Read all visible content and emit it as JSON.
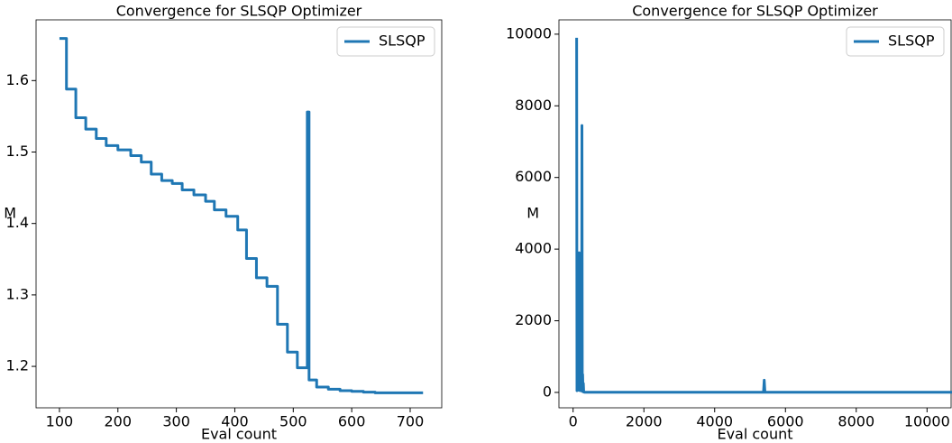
{
  "chart_data": [
    {
      "type": "line",
      "title": "Convergence for SLSQP Optimizer",
      "x_label": "Eval count",
      "y_label": "M",
      "legend": "upper right",
      "xlim": [
        60,
        754
      ],
      "ylim": [
        1.142,
        1.685
      ],
      "xticks": [
        100,
        200,
        300,
        400,
        500,
        600,
        700
      ],
      "yticks": [
        1.2,
        1.3,
        1.4,
        1.5,
        1.6
      ],
      "series": [
        {
          "name": "SLSQP",
          "color": "#1f77b4",
          "x": [
            100,
            112,
            112,
            128,
            128,
            145,
            145,
            163,
            163,
            180,
            180,
            200,
            200,
            222,
            222,
            240,
            240,
            257,
            257,
            275,
            275,
            293,
            293,
            310,
            310,
            330,
            330,
            350,
            350,
            365,
            365,
            385,
            385,
            405,
            405,
            420,
            420,
            437,
            437,
            455,
            455,
            473,
            473,
            490,
            490,
            507,
            507,
            524,
            524,
            527,
            527,
            540,
            540,
            560,
            560,
            580,
            580,
            600,
            600,
            620,
            620,
            640,
            640,
            722
          ],
          "values": [
            1.659,
            1.659,
            1.588,
            1.588,
            1.548,
            1.548,
            1.532,
            1.532,
            1.519,
            1.519,
            1.509,
            1.509,
            1.503,
            1.503,
            1.495,
            1.495,
            1.486,
            1.486,
            1.469,
            1.469,
            1.46,
            1.46,
            1.456,
            1.456,
            1.447,
            1.447,
            1.44,
            1.44,
            1.431,
            1.431,
            1.419,
            1.419,
            1.41,
            1.41,
            1.391,
            1.391,
            1.351,
            1.351,
            1.324,
            1.324,
            1.312,
            1.312,
            1.259,
            1.259,
            1.22,
            1.22,
            1.198,
            1.198,
            1.556,
            1.556,
            1.181,
            1.181,
            1.171,
            1.171,
            1.168,
            1.168,
            1.166,
            1.166,
            1.165,
            1.165,
            1.164,
            1.164,
            1.163,
            1.163
          ]
        }
      ]
    },
    {
      "type": "line",
      "title": "Convergence for SLSQP Optimizer",
      "x_label": "Eval count",
      "y_label": "M",
      "legend": "upper right",
      "xlim": [
        -400,
        10680
      ],
      "ylim": [
        -430,
        10400
      ],
      "xticks": [
        0,
        2000,
        4000,
        6000,
        8000,
        10000
      ],
      "yticks": [
        0,
        2000,
        4000,
        6000,
        8000,
        10000
      ],
      "series": [
        {
          "name": "SLSQP",
          "color": "#1f77b4",
          "x": [
            100,
            110,
            120,
            130,
            140,
            150,
            160,
            170,
            180,
            190,
            200,
            210,
            220,
            230,
            240,
            250,
            260,
            270,
            280,
            290,
            300,
            320,
            400,
            5380,
            5400,
            5420,
            10900
          ],
          "values": [
            9900,
            50,
            3300,
            100,
            2500,
            3600,
            60,
            3900,
            100,
            500,
            50,
            3200,
            100,
            500,
            60,
            7450,
            30,
            500,
            20,
            250,
            10,
            5,
            5,
            5,
            340,
            5,
            5
          ]
        }
      ]
    }
  ]
}
